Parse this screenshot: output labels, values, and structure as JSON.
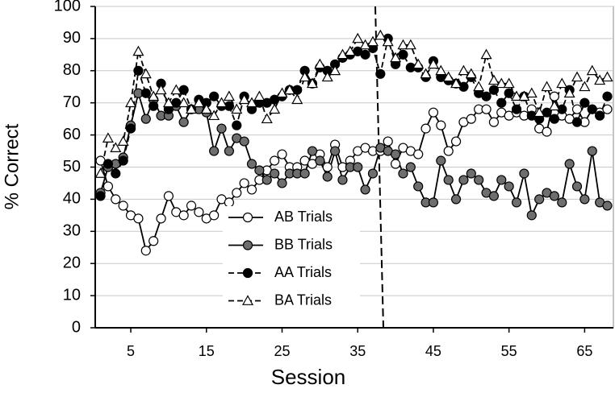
{
  "chart_data": {
    "type": "line",
    "x_label": "Session",
    "y_label": "% Correct",
    "x": [
      1,
      2,
      3,
      4,
      5,
      6,
      7,
      8,
      9,
      10,
      11,
      12,
      13,
      14,
      15,
      16,
      17,
      18,
      19,
      20,
      21,
      22,
      23,
      24,
      25,
      26,
      27,
      28,
      29,
      30,
      31,
      32,
      33,
      34,
      35,
      36,
      37,
      38,
      39,
      40,
      41,
      42,
      43,
      44,
      45,
      46,
      47,
      48,
      49,
      50,
      51,
      52,
      53,
      54,
      55,
      56,
      57,
      58,
      59,
      60,
      61,
      62,
      63,
      64,
      65,
      66,
      67,
      68
    ],
    "xlim": [
      0.3,
      68.8
    ],
    "xticks": [
      5,
      15,
      25,
      35,
      45,
      55,
      65
    ],
    "ylim": [
      0,
      100
    ],
    "yticks": [
      0,
      10,
      20,
      30,
      40,
      50,
      60,
      70,
      80,
      90,
      100
    ],
    "grid": true,
    "series": [
      {
        "name": "AB Trials",
        "color": "#000000",
        "marker": "circle",
        "marker_fill": "#ffffff",
        "line_style": "solid",
        "values": [
          52,
          44,
          40,
          38,
          35,
          34,
          24,
          27,
          34,
          41,
          36,
          35,
          38,
          36,
          34,
          35,
          40,
          39,
          42,
          45,
          43,
          46,
          49,
          52,
          54,
          50,
          50,
          52,
          51,
          54,
          50,
          57,
          50,
          52,
          55,
          56,
          55,
          55,
          58,
          51,
          56,
          55,
          54,
          62,
          67,
          63,
          55,
          58,
          64,
          65,
          68,
          68,
          64,
          67,
          66,
          67,
          66,
          68,
          62,
          61,
          72,
          66,
          65,
          68,
          64,
          68,
          67,
          68
        ]
      },
      {
        "name": "BB Trials",
        "color": "#000000",
        "marker": "circle",
        "marker_fill": "#6e6e6e",
        "line_style": "solid",
        "values": [
          42,
          50,
          51,
          53,
          63,
          73,
          65,
          71,
          66,
          66,
          69,
          64,
          68,
          68,
          67,
          55,
          62,
          55,
          59,
          58,
          51,
          49,
          46,
          48,
          45,
          48,
          48,
          48,
          55,
          52,
          47,
          55,
          46,
          50,
          50,
          43,
          48,
          56,
          55,
          54,
          48,
          50,
          44,
          39,
          39,
          52,
          46,
          40,
          46,
          48,
          46,
          42,
          41,
          46,
          44,
          39,
          48,
          35,
          40,
          42,
          41,
          39,
          51,
          44,
          40,
          55,
          39,
          38
        ]
      },
      {
        "name": "AA Trials",
        "color": "#000000",
        "marker": "circle",
        "marker_fill": "#000000",
        "line_style": "dashed",
        "values": [
          41,
          51,
          48,
          52,
          62,
          80,
          73,
          69,
          76,
          68,
          70,
          74,
          68,
          71,
          70,
          72,
          69,
          69,
          63,
          72,
          68,
          70,
          70,
          71,
          72,
          74,
          74,
          80,
          76,
          81,
          80,
          82,
          84,
          85,
          86,
          85,
          87,
          79,
          90,
          82,
          85,
          81,
          81,
          78,
          83,
          78,
          77,
          76,
          75,
          78,
          73,
          72,
          74,
          70,
          73,
          68,
          72,
          66,
          65,
          67,
          65,
          68,
          74,
          64,
          70,
          68,
          66,
          72
        ]
      },
      {
        "name": "BA Trials",
        "color": "#000000",
        "marker": "triangle",
        "marker_fill": "#ffffff",
        "line_style": "dashed",
        "values": [
          48,
          59,
          56,
          58,
          70,
          86,
          79,
          72,
          74,
          70,
          74,
          70,
          68,
          70,
          68,
          66,
          70,
          72,
          68,
          71,
          70,
          72,
          65,
          68,
          73,
          74,
          71,
          78,
          76,
          82,
          78,
          80,
          85,
          86,
          90,
          88,
          89,
          91,
          89,
          84,
          88,
          88,
          82,
          79,
          82,
          80,
          78,
          76,
          80,
          79,
          75,
          85,
          77,
          76,
          76,
          72,
          72,
          73,
          67,
          75,
          69,
          76,
          73,
          78,
          75,
          80,
          77,
          78
        ]
      }
    ]
  }
}
